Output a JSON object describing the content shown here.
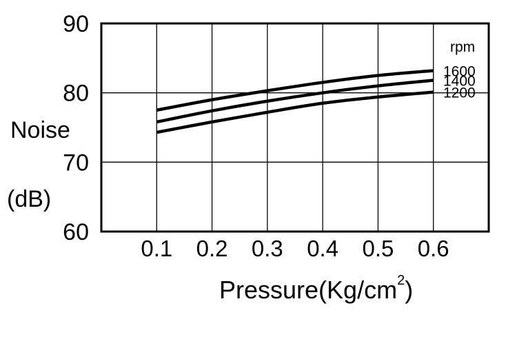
{
  "chart_data": {
    "type": "line",
    "title": "",
    "xlabel": "Pressure(Kg/cm",
    "xlabel_sup": "2",
    "xlabel_close": ")",
    "ylabel_line1": "Noise",
    "ylabel_line2": "(dB)",
    "xlim": [
      0,
      0.7
    ],
    "ylim": [
      60,
      90
    ],
    "x_ticks": [
      "0.1",
      "0.2",
      "0.3",
      "0.4",
      "0.5",
      "0.6"
    ],
    "x_tick_values": [
      0.1,
      0.2,
      0.3,
      0.4,
      0.5,
      0.6
    ],
    "y_ticks": [
      "60",
      "70",
      "80",
      "90"
    ],
    "y_tick_values": [
      60,
      70,
      80,
      90
    ],
    "grid": true,
    "legend_title": "rpm",
    "legend_placement": "right",
    "x": [
      0.1,
      0.2,
      0.3,
      0.4,
      0.5,
      0.6
    ],
    "series": [
      {
        "name": "1600",
        "values": [
          77.5,
          79.0,
          80.3,
          81.5,
          82.5,
          83.2
        ]
      },
      {
        "name": "1400",
        "values": [
          75.8,
          77.4,
          78.8,
          80.0,
          81.0,
          81.8
        ]
      },
      {
        "name": "1200",
        "values": [
          74.3,
          75.8,
          77.2,
          78.5,
          79.4,
          80.1
        ]
      }
    ],
    "line_color": "#000000"
  }
}
